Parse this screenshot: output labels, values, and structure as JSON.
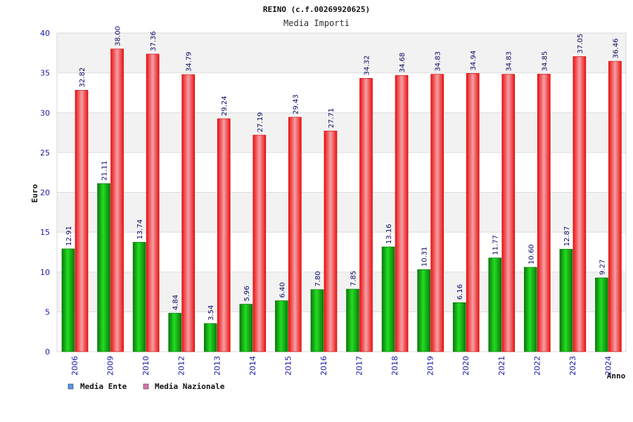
{
  "chart_data": {
    "type": "bar",
    "title": "REINO (c.f.00269920625)",
    "subtitle": "Media Importi",
    "xlabel": "Anno",
    "ylabel": "Euro",
    "ylim": [
      0,
      40
    ],
    "yticks": [
      0,
      5,
      10,
      15,
      20,
      25,
      30,
      35,
      40
    ],
    "categories": [
      "2006",
      "2009",
      "2010",
      "2012",
      "2013",
      "2014",
      "2015",
      "2016",
      "2017",
      "2018",
      "2019",
      "2020",
      "2021",
      "2022",
      "2023",
      "2024"
    ],
    "series": [
      {
        "name": "Media Ente",
        "values": [
          12.91,
          21.11,
          13.74,
          4.84,
          3.54,
          5.96,
          6.4,
          7.8,
          7.85,
          13.16,
          10.31,
          6.16,
          11.77,
          10.6,
          12.87,
          9.27
        ],
        "labels": [
          "12.91",
          "21.11",
          "13.74",
          "4.84",
          "3.54",
          "5.96",
          "6.40",
          "7.80",
          "7.85",
          "13.16",
          "10.31",
          "6.16",
          "11.77",
          "10.60",
          "12.87",
          "9.27"
        ],
        "color": "#11bb11",
        "legend_color": "#5599ee"
      },
      {
        "name": "Media Nazionale",
        "values": [
          32.82,
          38.0,
          37.36,
          34.79,
          29.24,
          27.19,
          29.43,
          27.71,
          34.32,
          34.68,
          34.83,
          34.94,
          34.83,
          34.85,
          37.05,
          36.46
        ],
        "labels": [
          "32.82",
          "38.00",
          "37.36",
          "34.79",
          "29.24",
          "27.19",
          "29.43",
          "27.71",
          "34.32",
          "34.68",
          "34.83",
          "34.94",
          "34.83",
          "34.85",
          "37.05",
          "36.46"
        ],
        "color": "#ee2222",
        "legend_color": "#dd77aa"
      }
    ],
    "grid": true,
    "legend": "bottom-left"
  }
}
